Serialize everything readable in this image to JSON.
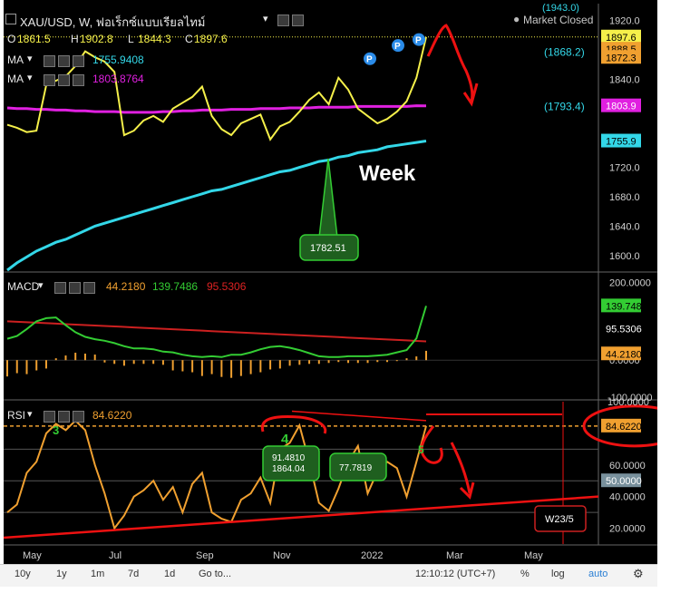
{
  "header": {
    "title": "XAU/USD, W, ฟอเร็กซ์แบบเรียลไทม์",
    "market_status": "Market Closed",
    "ohlc": {
      "o_label": "O",
      "o": "1861.5",
      "h_label": "H",
      "h": "1902.8",
      "l_label": "L",
      "l": "1844.3",
      "c_label": "C",
      "c": "1897.6"
    }
  },
  "indicators": {
    "ma1": {
      "label": "MA",
      "value": "1755.9408"
    },
    "ma2": {
      "label": "MA",
      "value": "1803.8764"
    },
    "macd": {
      "label": "MACD",
      "v1": "44.2180",
      "v2": "139.7486",
      "v3": "95.5306"
    },
    "rsi": {
      "label": "RSI",
      "value": "84.6220"
    }
  },
  "price_axis": {
    "ticks": [
      "1920.0",
      "1880.0",
      "1840.0",
      "1720.0",
      "1680.0",
      "1640.0",
      "1600.0"
    ],
    "top_partial": "(1943.0)",
    "labels": {
      "close": "1897.6",
      "a": "1888.5",
      "b": "1872.3",
      "paren1": "(1868.2)",
      "paren2": "(1793.4)",
      "ma2": "1803.9",
      "ma1": "1755.9"
    }
  },
  "macd_axis": {
    "ticks": [
      "200.0000",
      "0.0000",
      "-100.0000"
    ],
    "labels": {
      "green": "139.7486",
      "red": "95.5306",
      "orange": "44.2180"
    }
  },
  "rsi_axis": {
    "ticks": [
      "100.0000",
      "60.0000",
      "40.0000",
      "20.0000"
    ],
    "labels": {
      "value": "84.6220",
      "fifty": "50.0000"
    }
  },
  "time_axis": [
    "May",
    "Jul",
    "Sep",
    "Nov",
    "2022",
    "Mar",
    "May"
  ],
  "annotations": {
    "week": "Week",
    "box_price": "1782.51",
    "rsi_box1_a": "91.4810",
    "rsi_box1_b": "1864.04",
    "rsi_box2": "77.7819",
    "w_box": "W23/5",
    "wave3": "3",
    "wave4": "4",
    "wave5": "5",
    "p_marker": "P"
  },
  "toolbar": {
    "ranges": [
      "10y",
      "1y",
      "1m",
      "7d",
      "1d"
    ],
    "goto": "Go to...",
    "time": "12:10:12 (UTC+7)",
    "percent": "%",
    "log": "log",
    "auto": "auto"
  },
  "colors": {
    "price": "#f5f04a",
    "ma_fast": "#33d7e8",
    "ma_slow": "#e020e0",
    "macd_green": "#33cc33",
    "macd_red": "#cc2020",
    "rsi": "#f0a030",
    "annotation_red": "#ee1111"
  },
  "chart_data": {
    "type": "line",
    "x": [
      "2021-04-18",
      "2021-04-25",
      "2021-05-02",
      "2021-05-09",
      "2021-05-16",
      "2021-05-23",
      "2021-05-30",
      "2021-06-06",
      "2021-06-13",
      "2021-06-20",
      "2021-06-27",
      "2021-07-04",
      "2021-07-11",
      "2021-07-18",
      "2021-07-25",
      "2021-08-01",
      "2021-08-08",
      "2021-08-15",
      "2021-08-22",
      "2021-08-29",
      "2021-09-05",
      "2021-09-12",
      "2021-09-19",
      "2021-09-26",
      "2021-10-03",
      "2021-10-10",
      "2021-10-17",
      "2021-10-24",
      "2021-10-31",
      "2021-11-07",
      "2021-11-14",
      "2021-11-21",
      "2021-11-28",
      "2021-12-05",
      "2021-12-12",
      "2021-12-19",
      "2021-12-26",
      "2022-01-02",
      "2022-01-09",
      "2022-01-16",
      "2022-01-23",
      "2022-01-30",
      "2022-02-06",
      "2022-02-13"
    ],
    "series": [
      {
        "name": "XAU/USD",
        "values": [
          1778,
          1774,
          1768,
          1770,
          1832,
          1838,
          1844,
          1858,
          1878,
          1870,
          1864,
          1850,
          1764,
          1770,
          1784,
          1790,
          1782,
          1800,
          1808,
          1816,
          1830,
          1790,
          1772,
          1764,
          1780,
          1786,
          1792,
          1758,
          1776,
          1782,
          1796,
          1812,
          1822,
          1806,
          1842,
          1826,
          1800,
          1790,
          1780,
          1786,
          1796,
          1810,
          1842,
          1897.6
        ]
      },
      {
        "name": "MA",
        "values": [
          1580,
          1590,
          1598,
          1606,
          1612,
          1618,
          1622,
          1628,
          1634,
          1640,
          1644,
          1648,
          1652,
          1656,
          1660,
          1664,
          1668,
          1672,
          1676,
          1680,
          1684,
          1688,
          1690,
          1694,
          1698,
          1702,
          1706,
          1710,
          1714,
          1716,
          1720,
          1724,
          1728,
          1730,
          1734,
          1736,
          1740,
          1742,
          1744,
          1748,
          1750,
          1752,
          1754,
          1755.9
        ]
      },
      {
        "name": "MA",
        "values": [
          1801,
          1800,
          1800,
          1799,
          1799,
          1798,
          1798,
          1797,
          1797,
          1796,
          1796,
          1796,
          1795,
          1795,
          1795,
          1795,
          1796,
          1796,
          1797,
          1797,
          1798,
          1798,
          1798,
          1799,
          1799,
          1799,
          1800,
          1800,
          1800,
          1801,
          1801,
          1801,
          1802,
          1802,
          1802,
          1802,
          1803,
          1803,
          1803,
          1803,
          1803,
          1803,
          1804,
          1803.9
        ]
      },
      {
        "name": "RSI",
        "values": [
          30,
          35,
          55,
          62,
          80,
          86,
          82,
          88,
          82,
          60,
          42,
          20,
          28,
          40,
          44,
          50,
          38,
          46,
          30,
          48,
          55,
          30,
          26,
          24,
          38,
          42,
          52,
          36,
          70,
          74,
          85,
          62,
          36,
          31,
          45,
          62,
          72,
          42,
          56,
          62,
          58,
          40,
          62,
          84.622
        ]
      }
    ],
    "macd": {
      "value": 44.218,
      "signal": 139.7486,
      "histogram": 95.5306
    },
    "ylim_price": [
      1580,
      1943
    ],
    "ylim_macd": [
      -100,
      220
    ],
    "ylim_rsi": [
      10,
      100
    ]
  }
}
